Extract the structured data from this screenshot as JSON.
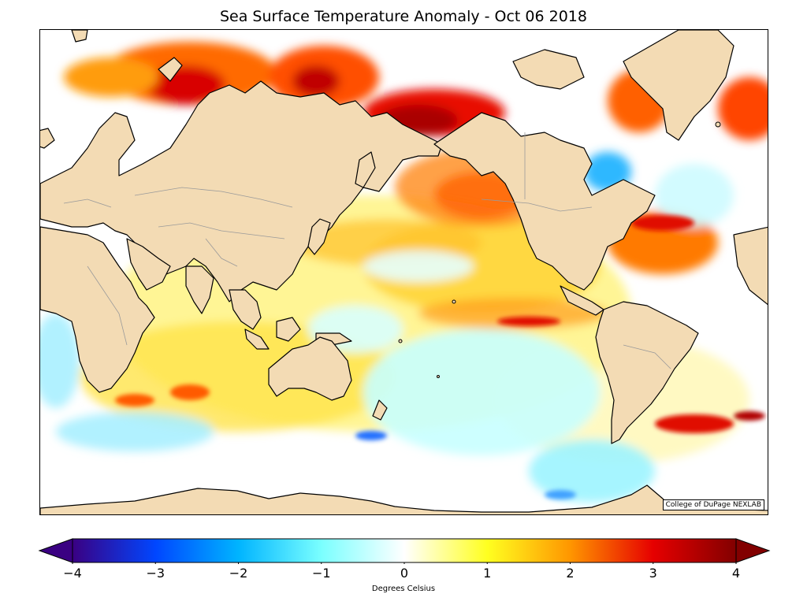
{
  "header": {
    "title": "Sea Surface Temperature Anomaly - Oct 06 2018"
  },
  "map": {
    "credit": "College of DuPage NEXLAB",
    "projection": "global cylindrical, Pacific-centered",
    "ocean_color": "#ffffff",
    "land_color": "#f3dbb4",
    "coastline_color": "#000000",
    "border_color": "#9a9a9a"
  },
  "colorbar": {
    "min": -4,
    "max": 4,
    "ticks": [
      -4,
      -3,
      -2,
      -1,
      0,
      1,
      2,
      3,
      4
    ],
    "tick_labels": [
      "−4",
      "−3",
      "−2",
      "−1",
      "0",
      "1",
      "2",
      "3",
      "4"
    ],
    "units_label": "Degrees Celsius",
    "extend": "both",
    "colors": [
      "#3a0082",
      "#0046ff",
      "#00b4ff",
      "#7affff",
      "#ffffff",
      "#ffff20",
      "#ff9600",
      "#e60000",
      "#820000"
    ]
  }
}
